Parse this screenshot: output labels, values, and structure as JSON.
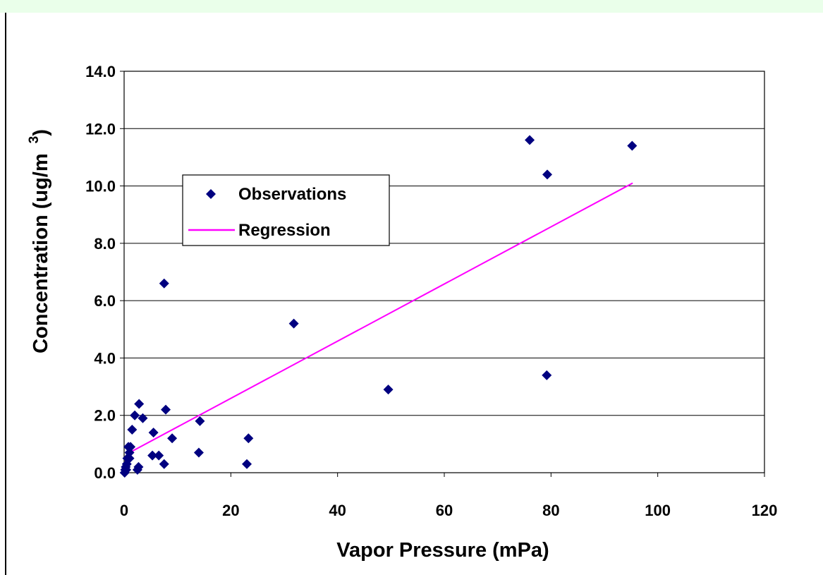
{
  "chart_data": {
    "type": "scatter",
    "title": "",
    "xlabel": "Vapor Pressure (mPa)",
    "ylabel_main": "Concentration (ug/m",
    "ylabel_sup": "3",
    "ylabel_close": ")",
    "xlim": [
      0,
      120
    ],
    "ylim": [
      0,
      14
    ],
    "x_ticks": [
      0,
      20,
      40,
      60,
      80,
      100,
      120
    ],
    "x_tick_labels": [
      "0",
      "20",
      "40",
      "60",
      "80",
      "100",
      "120"
    ],
    "y_ticks": [
      0,
      2,
      4,
      6,
      8,
      10,
      12,
      14
    ],
    "y_tick_labels": [
      "0.0",
      "2.0",
      "4.0",
      "6.0",
      "8.0",
      "10.0",
      "12.0",
      "14.0"
    ],
    "grid": "horizontal",
    "legend_position": "upper-left",
    "series": [
      {
        "name": "Observations",
        "marker": "diamond",
        "color": "#000080",
        "points": [
          [
            0.1,
            0.0
          ],
          [
            0.2,
            0.1
          ],
          [
            0.3,
            0.2
          ],
          [
            0.4,
            0.1
          ],
          [
            0.5,
            0.3
          ],
          [
            0.6,
            0.5
          ],
          [
            0.8,
            0.9
          ],
          [
            1.0,
            0.7
          ],
          [
            1.2,
            0.9
          ],
          [
            1.0,
            0.5
          ],
          [
            1.5,
            1.5
          ],
          [
            2.0,
            2.0
          ],
          [
            2.5,
            0.1
          ],
          [
            2.7,
            0.2
          ],
          [
            2.8,
            2.4
          ],
          [
            3.5,
            1.9
          ],
          [
            5.5,
            1.4
          ],
          [
            5.3,
            0.6
          ],
          [
            6.5,
            0.6
          ],
          [
            7.5,
            0.3
          ],
          [
            7.5,
            6.6
          ],
          [
            7.8,
            2.2
          ],
          [
            9.0,
            1.2
          ],
          [
            14.0,
            0.7
          ],
          [
            14.2,
            1.8
          ],
          [
            23.0,
            0.3
          ],
          [
            23.3,
            1.2
          ],
          [
            31.8,
            5.2
          ],
          [
            49.5,
            2.9
          ],
          [
            76.0,
            11.6
          ],
          [
            79.3,
            10.4
          ],
          [
            79.2,
            3.4
          ],
          [
            95.2,
            11.4
          ]
        ]
      },
      {
        "name": "Regression",
        "type": "line",
        "color": "#ff00ff",
        "points": [
          [
            0.5,
            0.65
          ],
          [
            95.3,
            10.1
          ]
        ]
      }
    ]
  }
}
